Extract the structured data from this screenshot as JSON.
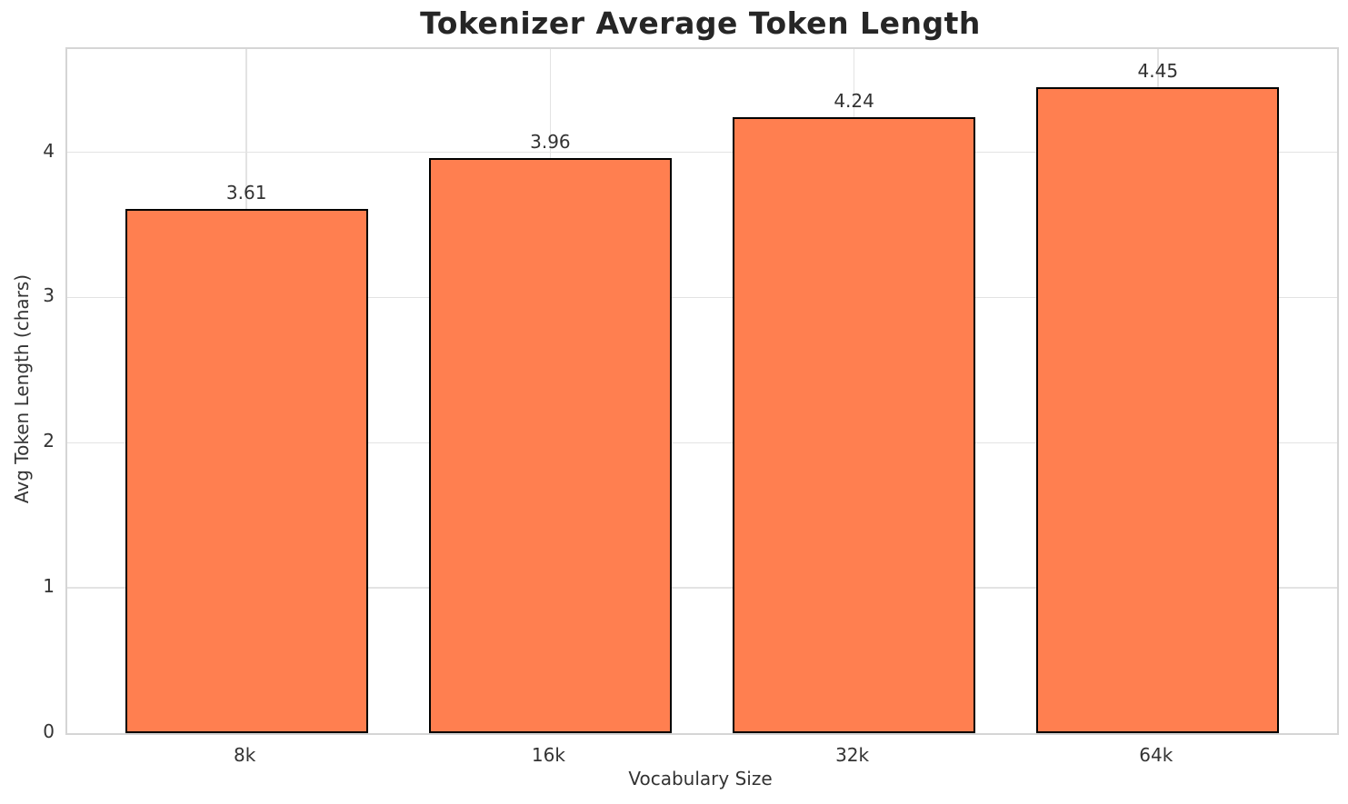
{
  "chart_data": {
    "type": "bar",
    "title": "Tokenizer Average Token Length",
    "xlabel": "Vocabulary Size",
    "ylabel": "Avg Token Length (chars)",
    "categories": [
      "8k",
      "16k",
      "32k",
      "64k"
    ],
    "values": [
      3.61,
      3.96,
      4.24,
      4.45
    ],
    "bar_labels": [
      "3.61",
      "3.96",
      "4.24",
      "4.45"
    ],
    "yticks": [
      0,
      1,
      2,
      3,
      4
    ],
    "ylim": [
      0,
      4.71
    ],
    "xlim": [
      -0.59,
      3.59
    ],
    "bar_width": 0.8,
    "grid": "both-at-ticks",
    "legend_position": "none",
    "colors": {
      "bar_fill": "#FF7F50",
      "bar_edge": "#000000",
      "grid_line": "#e3e3e3",
      "spine": "#d5d5d5",
      "title_text": "#262626",
      "tick_text": "#333333"
    }
  }
}
